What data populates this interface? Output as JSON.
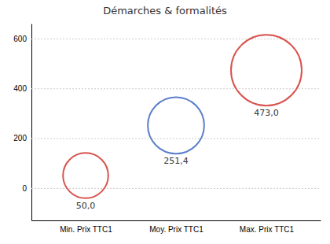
{
  "chart_data": {
    "type": "bubble",
    "title": "Démarches & formalités",
    "categories": [
      "Min. Prix TTC1",
      "Moy. Prix TTC1",
      "Max. Prix TTC1"
    ],
    "values": [
      50.0,
      251.4,
      473.0
    ],
    "value_labels": [
      "50,0",
      "251,4",
      "473,0"
    ],
    "sizes": [
      9000,
      14000,
      22000
    ],
    "colors": [
      "#d9534f",
      "#5b7fc9",
      "#d9534f"
    ],
    "ylim": [
      -130,
      660
    ],
    "yticks": [
      0,
      200,
      400,
      600
    ],
    "grid": true,
    "data_labels": true
  }
}
